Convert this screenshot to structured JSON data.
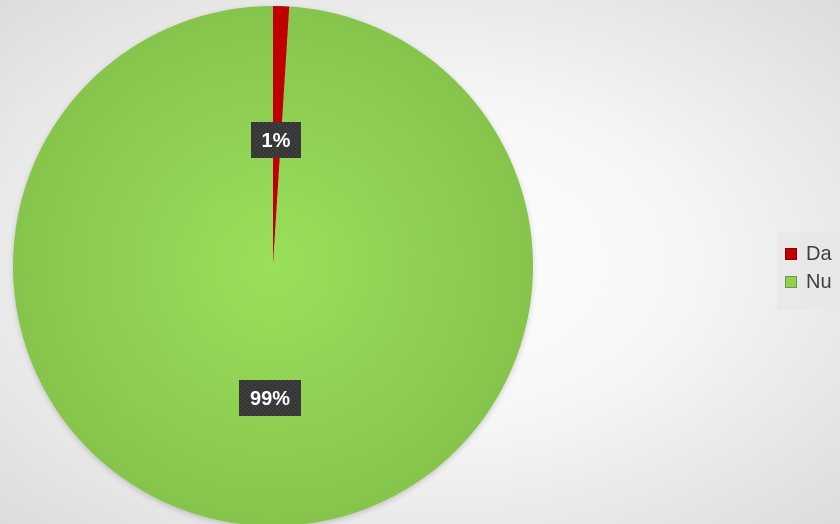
{
  "chart_data": {
    "type": "pie",
    "categories": [
      "Da",
      "Nu"
    ],
    "values": [
      1,
      99
    ],
    "data_labels": [
      "1%",
      "99%"
    ],
    "colors": [
      "#c00000",
      "#92d050"
    ],
    "legend": {
      "placement": "right",
      "items": [
        {
          "label": "Da",
          "color": "#c00000"
        },
        {
          "label": "Nu",
          "color": "#92d050"
        }
      ]
    }
  }
}
